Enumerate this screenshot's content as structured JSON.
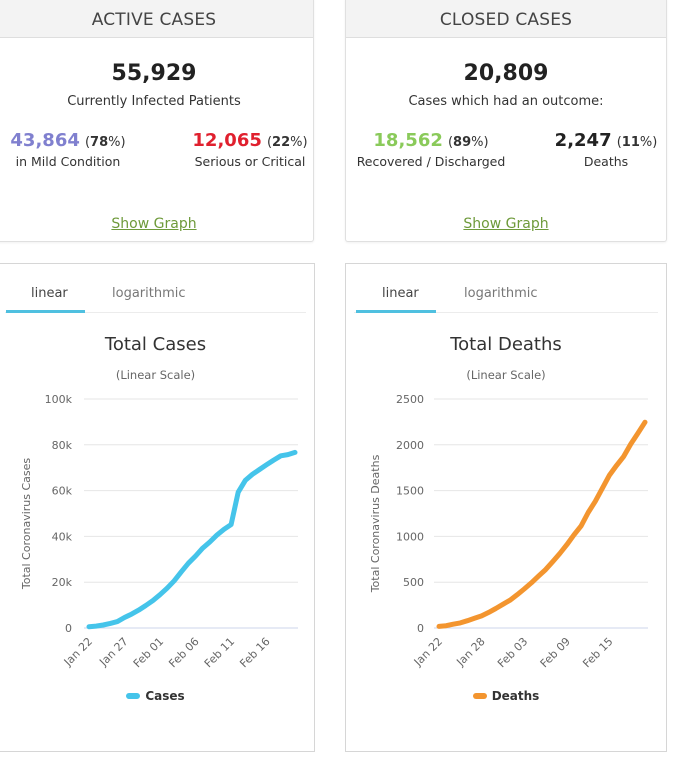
{
  "active_cases": {
    "header": "ACTIVE CASES",
    "total": "55,929",
    "total_label": "Currently Infected Patients",
    "mild": {
      "value": "43,864",
      "pct": "78",
      "label": "in Mild Condition",
      "color": "#8080cf"
    },
    "serious": {
      "value": "12,065",
      "pct": "22",
      "label": "Serious or Critical",
      "color": "#e0202e"
    },
    "show_graph_label": "Show Graph"
  },
  "closed_cases": {
    "header": "CLOSED CASES",
    "total": "20,809",
    "total_label": "Cases which had an outcome:",
    "recovered": {
      "value": "18,562",
      "pct": "89",
      "label": "Recovered / Discharged",
      "color": "#8aca5a"
    },
    "deaths": {
      "value": "2,247",
      "pct": "11",
      "label": "Deaths",
      "color": "#222222"
    },
    "show_graph_label": "Show Graph"
  },
  "chart_panels": [
    {
      "tabs": [
        "linear",
        "logarithmic"
      ],
      "active_tab": "linear"
    },
    {
      "tabs": [
        "linear",
        "logarithmic"
      ],
      "active_tab": "linear"
    }
  ],
  "chart_data": [
    {
      "type": "line",
      "title": "Total Cases",
      "subtitle": "(Linear Scale)",
      "xlabel": "",
      "ylabel": "Total Coronavirus Cases",
      "ylim": [
        0,
        100000
      ],
      "y_ticks": [
        0,
        20000,
        40000,
        60000,
        80000,
        100000
      ],
      "y_tick_labels": [
        "0",
        "20k",
        "40k",
        "60k",
        "80k",
        "100k"
      ],
      "x_tick_labels": [
        "Jan 22",
        "Jan 27",
        "Feb 01",
        "Feb 06",
        "Feb 11",
        "Feb 16"
      ],
      "grid": true,
      "legend": "bottom-center",
      "x": [
        "Jan 22",
        "Jan 23",
        "Jan 24",
        "Jan 25",
        "Jan 26",
        "Jan 27",
        "Jan 28",
        "Jan 29",
        "Jan 30",
        "Jan 31",
        "Feb 01",
        "Feb 02",
        "Feb 03",
        "Feb 04",
        "Feb 05",
        "Feb 06",
        "Feb 07",
        "Feb 08",
        "Feb 09",
        "Feb 10",
        "Feb 11",
        "Feb 12",
        "Feb 13",
        "Feb 14",
        "Feb 15",
        "Feb 16",
        "Feb 17",
        "Feb 18",
        "Feb 19",
        "Feb 20"
      ],
      "series": [
        {
          "name": "Cases",
          "color": "#45c4ea",
          "values": [
            580,
            845,
            1317,
            2015,
            2800,
            4581,
            6058,
            7813,
            9823,
            11948,
            14551,
            17389,
            20628,
            24553,
            28276,
            31439,
            34876,
            37552,
            40553,
            43099,
            45170,
            59283,
            64437,
            67100,
            69197,
            71329,
            73332,
            75184,
            75700,
            76677
          ]
        }
      ]
    },
    {
      "type": "line",
      "title": "Total Deaths",
      "subtitle": "(Linear Scale)",
      "xlabel": "",
      "ylabel": "Total Coronavirus Deaths",
      "ylim": [
        0,
        2500
      ],
      "y_ticks": [
        0,
        500,
        1000,
        1500,
        2000,
        2500
      ],
      "y_tick_labels": [
        "0",
        "500",
        "1000",
        "1500",
        "2000",
        "2500"
      ],
      "x_tick_labels": [
        "Jan 22",
        "Jan 28",
        "Feb 03",
        "Feb 09",
        "Feb 15"
      ],
      "grid": true,
      "legend": "bottom-center",
      "x": [
        "Jan 22",
        "Jan 23",
        "Jan 24",
        "Jan 25",
        "Jan 26",
        "Jan 27",
        "Jan 28",
        "Jan 29",
        "Jan 30",
        "Jan 31",
        "Feb 01",
        "Feb 02",
        "Feb 03",
        "Feb 04",
        "Feb 05",
        "Feb 06",
        "Feb 07",
        "Feb 08",
        "Feb 09",
        "Feb 10",
        "Feb 11",
        "Feb 12",
        "Feb 13",
        "Feb 14",
        "Feb 15",
        "Feb 16",
        "Feb 17",
        "Feb 18",
        "Feb 19",
        "Feb 20"
      ],
      "series": [
        {
          "name": "Deaths",
          "color": "#f3952f",
          "values": [
            17,
            25,
            41,
            56,
            80,
            106,
            132,
            170,
            213,
            259,
            304,
            362,
            426,
            492,
            565,
            638,
            724,
            813,
            910,
            1018,
            1115,
            1261,
            1383,
            1526,
            1669,
            1775,
            1873,
            2009,
            2126,
            2247
          ]
        }
      ]
    }
  ]
}
